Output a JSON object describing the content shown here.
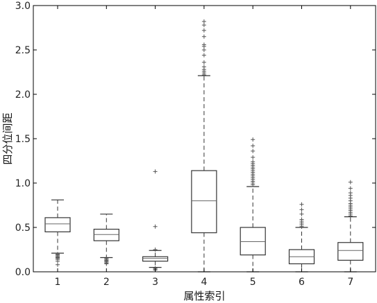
{
  "chart_data": {
    "type": "box",
    "title": "",
    "xlabel": "属性索引",
    "ylabel": "四分位间距",
    "ylim": [
      0,
      3.0
    ],
    "yticks": [
      "0.0",
      "0.5",
      "1.0",
      "1.5",
      "2.0",
      "2.5",
      "3.0"
    ],
    "categories": [
      "1",
      "2",
      "3",
      "4",
      "5",
      "6",
      "7"
    ],
    "grid": false,
    "legend": "none",
    "colors": {
      "box": "#333333",
      "median": "#666666",
      "flier": "#555555",
      "background": "#ffffff"
    },
    "boxes": [
      {
        "category": "1",
        "q1": 0.45,
        "median": 0.54,
        "q3": 0.61,
        "whisker_low": 0.21,
        "whisker_high": 0.81,
        "outliers": [
          0.2,
          0.19,
          0.18,
          0.17,
          0.16,
          0.15,
          0.14,
          0.12,
          0.08
        ]
      },
      {
        "category": "2",
        "q1": 0.35,
        "median": 0.42,
        "q3": 0.48,
        "whisker_low": 0.16,
        "whisker_high": 0.65,
        "outliers": [
          0.15,
          0.14,
          0.13,
          0.12,
          0.11,
          0.1,
          0.09
        ]
      },
      {
        "category": "3",
        "q1": 0.12,
        "median": 0.15,
        "q3": 0.17,
        "whisker_low": 0.05,
        "whisker_high": 0.24,
        "outliers": [
          1.13,
          0.51,
          0.25,
          0.04,
          0.03,
          0.02
        ]
      },
      {
        "category": "4",
        "q1": 0.44,
        "median": 0.8,
        "q3": 1.14,
        "whisker_low": 0.0,
        "whisker_high": 2.21,
        "outliers": [
          2.22,
          2.24,
          2.26,
          2.28,
          2.31,
          2.36,
          2.44,
          2.5,
          2.54,
          2.56,
          2.65,
          2.72,
          2.78,
          2.82
        ]
      },
      {
        "category": "5",
        "q1": 0.19,
        "median": 0.34,
        "q3": 0.5,
        "whisker_low": 0.0,
        "whisker_high": 0.96,
        "outliers": [
          0.98,
          1.0,
          1.02,
          1.04,
          1.06,
          1.08,
          1.1,
          1.12,
          1.14,
          1.16,
          1.18,
          1.2,
          1.22,
          1.24,
          1.29,
          1.36,
          1.42,
          1.49
        ]
      },
      {
        "category": "6",
        "q1": 0.09,
        "median": 0.17,
        "q3": 0.25,
        "whisker_low": 0.0,
        "whisker_high": 0.5,
        "outliers": [
          0.51,
          0.53,
          0.55,
          0.57,
          0.59,
          0.65,
          0.7,
          0.76
        ]
      },
      {
        "category": "7",
        "q1": 0.13,
        "median": 0.24,
        "q3": 0.33,
        "whisker_low": 0.0,
        "whisker_high": 0.62,
        "outliers": [
          0.63,
          0.65,
          0.67,
          0.69,
          0.71,
          0.73,
          0.75,
          0.77,
          0.8,
          0.83,
          0.86,
          0.89,
          0.94,
          1.01
        ]
      }
    ]
  }
}
